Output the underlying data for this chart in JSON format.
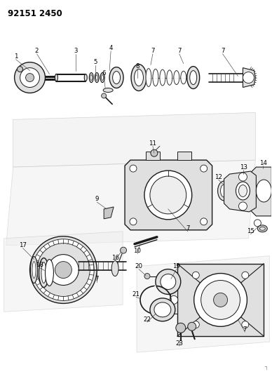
{
  "title": "92151 2450",
  "bg_color": "#ffffff",
  "line_color": "#1a1a1a",
  "figsize": [
    3.88,
    5.33
  ],
  "dpi": 100,
  "gray_fill": "#c8c8c8",
  "light_gray": "#e0e0e0",
  "dark_gray": "#888888",
  "panel_color": "#eeeeee",
  "panel_edge": "#bbbbbb"
}
